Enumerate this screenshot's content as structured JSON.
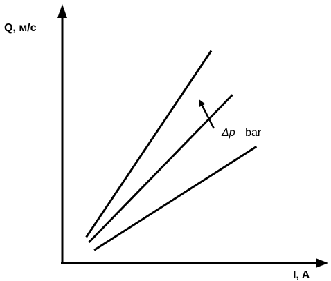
{
  "chart_data": {
    "type": "line",
    "title": "",
    "ylabel": "Q, м/с",
    "xlabel": "I, A",
    "grid": false,
    "legend": "none",
    "series": [
      {
        "x": [
          0.09,
          0.56
        ],
        "y": [
          0.1,
          0.82
        ]
      },
      {
        "x": [
          0.1,
          0.64
        ],
        "y": [
          0.08,
          0.65
        ]
      },
      {
        "x": [
          0.12,
          0.73
        ],
        "y": [
          0.05,
          0.45
        ]
      }
    ],
    "xlim": [
      0,
      1
    ],
    "ylim": [
      0,
      1
    ],
    "annotation": {
      "symbol": "Δp",
      "unit": "bar",
      "arrow_from": [
        0.57,
        0.52
      ],
      "arrow_to": [
        0.52,
        0.62
      ]
    },
    "colors": {
      "line": "#000000",
      "background": "#ffffff"
    }
  }
}
